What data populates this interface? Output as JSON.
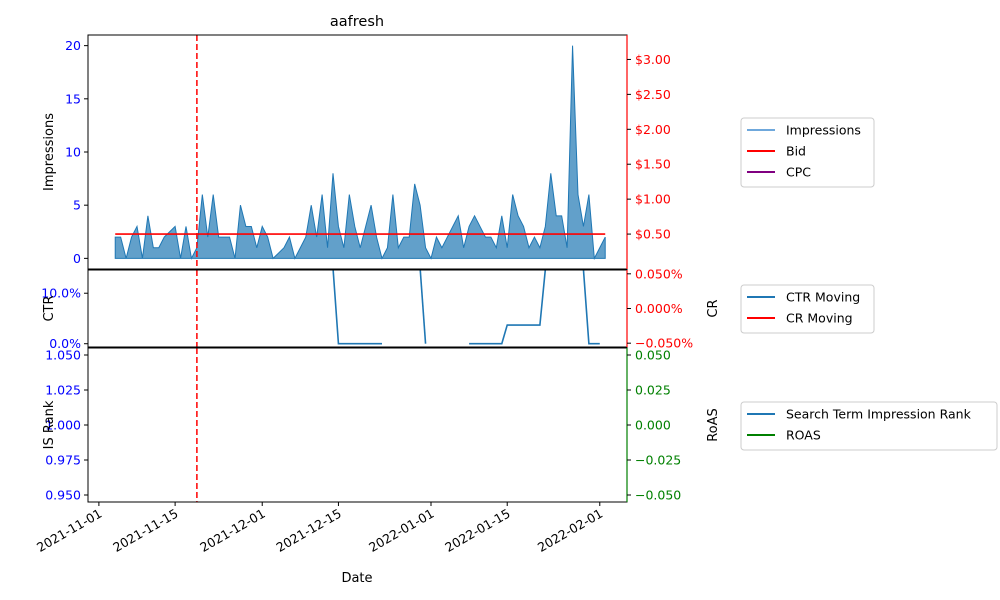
{
  "chart_data": {
    "title": "aafresh",
    "x_axis": {
      "label": "Date",
      "range": [
        "2021-10-30",
        "2022-02-06"
      ],
      "ticks": [
        "2021-11-01",
        "2021-11-15",
        "2021-12-01",
        "2021-12-15",
        "2022-01-01",
        "2022-01-15",
        "2022-02-01"
      ]
    },
    "marker_date": "2021-11-19",
    "panels": [
      {
        "id": "top",
        "type": "area+line",
        "ylabel_left": "Impressions",
        "left_ylim": [
          -1,
          21
        ],
        "left_ticks": [
          "0",
          "5",
          "10",
          "15",
          "20"
        ],
        "left_tick_values": [
          0,
          5,
          10,
          15,
          20
        ],
        "left_color": "#0000ff",
        "right_ylim": [
          0,
          3.35
        ],
        "right_ticks": [
          "$0.50",
          "$1.00",
          "$1.50",
          "$2.00",
          "$2.50",
          "$3.00"
        ],
        "right_tick_values": [
          0.5,
          1.0,
          1.5,
          2.0,
          2.5,
          3.0
        ],
        "right_color": "#ff0000",
        "legend": [
          "Impressions",
          "Bid",
          "CPC"
        ],
        "legend_colors": [
          "#6fa8dc",
          "#ff0000",
          "#800080"
        ],
        "series": [
          {
            "name": "Impressions",
            "color": "#1f77b4",
            "x": [
              "2021-11-04",
              "2021-11-05",
              "2021-11-06",
              "2021-11-07",
              "2021-11-08",
              "2021-11-09",
              "2021-11-10",
              "2021-11-11",
              "2021-11-12",
              "2021-11-13",
              "2021-11-14",
              "2021-11-15",
              "2021-11-16",
              "2021-11-17",
              "2021-11-18",
              "2021-11-19",
              "2021-11-20",
              "2021-11-21",
              "2021-11-22",
              "2021-11-23",
              "2021-11-24",
              "2021-11-25",
              "2021-11-26",
              "2021-11-27",
              "2021-11-28",
              "2021-11-29",
              "2021-11-30",
              "2021-12-01",
              "2021-12-02",
              "2021-12-03",
              "2021-12-04",
              "2021-12-05",
              "2021-12-06",
              "2021-12-07",
              "2021-12-08",
              "2021-12-09",
              "2021-12-10",
              "2021-12-11",
              "2021-12-12",
              "2021-12-13",
              "2021-12-14",
              "2021-12-15",
              "2021-12-16",
              "2021-12-17",
              "2021-12-18",
              "2021-12-19",
              "2021-12-20",
              "2021-12-21",
              "2021-12-22",
              "2021-12-23",
              "2021-12-24",
              "2021-12-25",
              "2021-12-26",
              "2021-12-27",
              "2021-12-28",
              "2021-12-29",
              "2021-12-30",
              "2021-12-31",
              "2022-01-01",
              "2022-01-02",
              "2022-01-03",
              "2022-01-04",
              "2022-01-05",
              "2022-01-06",
              "2022-01-07",
              "2022-01-08",
              "2022-01-09",
              "2022-01-10",
              "2022-01-11",
              "2022-01-12",
              "2022-01-13",
              "2022-01-14",
              "2022-01-15",
              "2022-01-16",
              "2022-01-17",
              "2022-01-18",
              "2022-01-19",
              "2022-01-20",
              "2022-01-21",
              "2022-01-22",
              "2022-01-23",
              "2022-01-24",
              "2022-01-25",
              "2022-01-26",
              "2022-01-27",
              "2022-01-28",
              "2022-01-29",
              "2022-01-30",
              "2022-01-31",
              "2022-02-01",
              "2022-02-02"
            ],
            "values": [
              2,
              2,
              0,
              2,
              3,
              0,
              4,
              1,
              1,
              2,
              2.5,
              3,
              0,
              3,
              0,
              1,
              6,
              2,
              6,
              2,
              2,
              2,
              0,
              5,
              3,
              3,
              1,
              3,
              2,
              0,
              0.5,
              1,
              2,
              0,
              1,
              2,
              5,
              2,
              6,
              1,
              8,
              3,
              1,
              6,
              3,
              1,
              3,
              5,
              2,
              0,
              1,
              6,
              1,
              2,
              2,
              7,
              5,
              1,
              0,
              2,
              1,
              2,
              3,
              4,
              1,
              3,
              4,
              3,
              2,
              2,
              1,
              4,
              1,
              6,
              4,
              3,
              1,
              2,
              1,
              3,
              8,
              4,
              4,
              1,
              20,
              6,
              3,
              6,
              0,
              1,
              2
            ]
          },
          {
            "name": "Bid",
            "color": "#ff0000",
            "x": [
              "2021-11-04",
              "2022-02-02"
            ],
            "values": [
              0.5,
              0.5
            ]
          }
        ]
      },
      {
        "id": "middle",
        "type": "line",
        "ylabel_left": "CTR",
        "ylabel_right": "CR",
        "left_ylim": [
          -0.0065,
          0.146
        ],
        "left_ticks": [
          "0.0%",
          "10.0%"
        ],
        "left_tick_values": [
          0,
          0.1
        ],
        "left_color": "#0000ff",
        "right_ylim": [
          -0.0555,
          0.0555
        ],
        "right_ticks": [
          "−0.050%",
          "0.000%",
          "0.050%"
        ],
        "right_tick_values": [
          -0.05,
          0,
          0.05
        ],
        "right_color": "#ff0000",
        "legend": [
          "CTR Moving",
          "CR Moving"
        ],
        "legend_colors": [
          "#1f77b4",
          "#ff0000"
        ],
        "series": [
          {
            "name": "CTR Moving",
            "color": "#1f77b4",
            "segments": [
              {
                "x": [
                  "2021-12-14",
                  "2021-12-15",
                  "2021-12-23"
                ],
                "values": [
                  0.15,
                  0,
                  0
                ]
              },
              {
                "x": [
                  "2021-12-30",
                  "2021-12-31"
                ],
                "values": [
                  0.15,
                  0
                ]
              },
              {
                "x": [
                  "2022-01-08",
                  "2022-01-14",
                  "2022-01-15",
                  "2022-01-21",
                  "2022-01-22",
                  "2022-01-29",
                  "2022-01-30",
                  "2022-02-01"
                ],
                "values": [
                  0,
                  0,
                  0.037,
                  0.037,
                  0.147,
                  0.147,
                  0,
                  0
                ]
              }
            ]
          }
        ]
      },
      {
        "id": "bottom",
        "type": "line",
        "ylabel_left": "IS Rank",
        "ylabel_right": "RoAS",
        "left_ylim": [
          0.945,
          1.055
        ],
        "left_ticks": [
          "0.950",
          "0.975",
          "1.000",
          "1.025",
          "1.050"
        ],
        "left_tick_values": [
          0.95,
          0.975,
          1.0,
          1.025,
          1.05
        ],
        "left_color": "#0000ff",
        "right_ylim": [
          -0.055,
          0.055
        ],
        "right_ticks": [
          "−0.050",
          "−0.025",
          "0.000",
          "0.025",
          "0.050"
        ],
        "right_tick_values": [
          -0.05,
          -0.025,
          0,
          0.025,
          0.05
        ],
        "right_color": "#008000",
        "legend": [
          "Search Term Impression Rank",
          "ROAS"
        ],
        "legend_colors": [
          "#1f77b4",
          "#008000"
        ]
      }
    ]
  }
}
